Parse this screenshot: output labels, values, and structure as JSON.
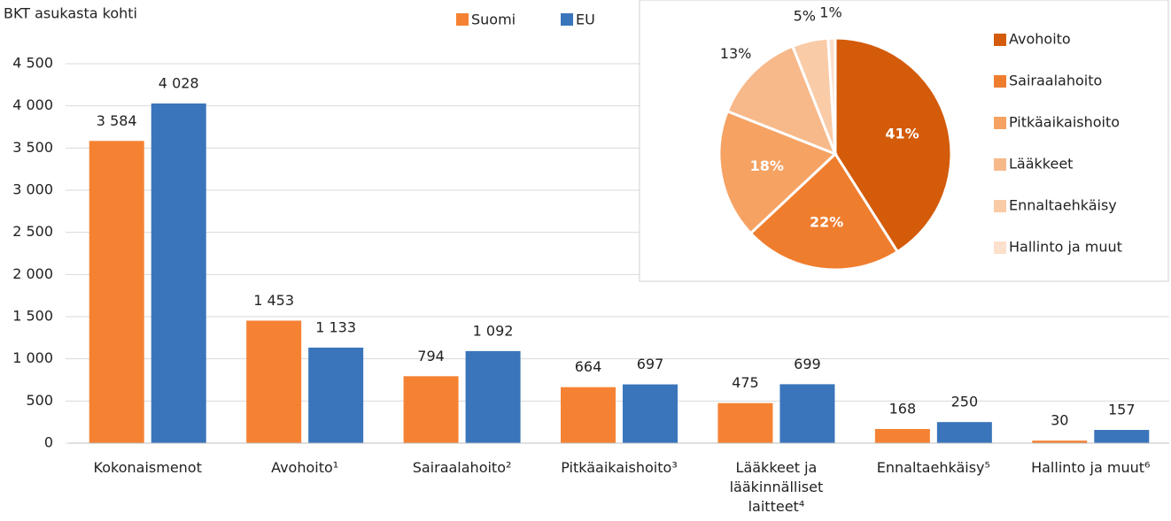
{
  "chart_data": [
    {
      "type": "bar",
      "y_label": "BKT asukasta kohti",
      "categories": [
        "Kokonaismenot",
        "Avohoito¹",
        "Sairaalahoito²",
        "Pitkäaikaishoito³",
        "Lääkkeet ja lääkinnälliset laitteet⁴",
        "Ennaltaehkäisy⁵",
        "Hallinto ja muut⁶"
      ],
      "series": [
        {
          "name": "Suomi",
          "color": "#f58233",
          "values": [
            3584,
            1453,
            794,
            664,
            475,
            168,
            30
          ],
          "value_labels": [
            "3 584",
            "1 453",
            "794",
            "664",
            "475",
            "168",
            "30"
          ]
        },
        {
          "name": "EU",
          "color": "#3a75bb",
          "values": [
            4028,
            1133,
            1092,
            697,
            699,
            250,
            157
          ],
          "value_labels": [
            "4 028",
            "1 133",
            "1 092",
            "697",
            "699",
            "250",
            "157"
          ]
        }
      ],
      "ylim": [
        0,
        4500
      ],
      "yticks": [
        0,
        500,
        {
          "value": 1000,
          "label": "1 000"
        },
        {
          "value": 1500,
          "label": "1 500"
        },
        {
          "value": 2000,
          "label": "2 000"
        },
        {
          "value": 2500,
          "label": "2 500"
        },
        {
          "value": 3000,
          "label": "3 000"
        },
        {
          "value": 3500,
          "label": "3 500"
        },
        {
          "value": 4000,
          "label": "4 000"
        },
        {
          "value": 4500,
          "label": "4 500"
        }
      ],
      "grid": true
    },
    {
      "type": "pie",
      "categories": [
        "Avohoito",
        "Sairaalahoito",
        "Pitkäaikaishoito",
        "Lääkkeet",
        "Ennaltaehkäisy",
        "Hallinto ja muut"
      ],
      "values": [
        41,
        22,
        18,
        13,
        5,
        1
      ],
      "value_labels": [
        "41%",
        "22%",
        "18%",
        "13%",
        "5%",
        "1%"
      ],
      "colors": [
        "#d35b0a",
        "#ef7d2e",
        "#f5a263",
        "#f7b98a",
        "#f9cba7",
        "#fbe0cc"
      ]
    }
  ]
}
